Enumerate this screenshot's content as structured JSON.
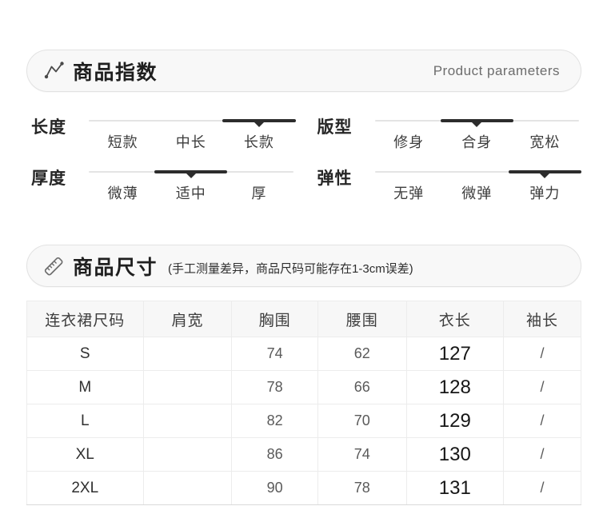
{
  "params_header": {
    "icon": "trend-icon",
    "title": "商品指数",
    "right_label": "Product parameters"
  },
  "attributes": [
    {
      "label": "长度",
      "options": [
        "短款",
        "中长",
        "长款"
      ],
      "selected_index": 2
    },
    {
      "label": "版型",
      "options": [
        "修身",
        "合身",
        "宽松"
      ],
      "selected_index": 1
    },
    {
      "label": "厚度",
      "options": [
        "微薄",
        "适中",
        "厚"
      ],
      "selected_index": 1
    },
    {
      "label": "弹性",
      "options": [
        "无弹",
        "微弹",
        "弹力"
      ],
      "selected_index": 2
    }
  ],
  "size_header": {
    "icon": "ruler-icon",
    "title": "商品尺寸",
    "note": "(手工测量差异，商品尺码可能存在1-3cm误差)"
  },
  "size_table": {
    "columns": [
      "连衣裙尺码",
      "肩宽",
      "胸围",
      "腰围",
      "衣长",
      "袖长"
    ],
    "rows": [
      [
        "S",
        "",
        "74",
        "62",
        "127",
        "/"
      ],
      [
        "M",
        "",
        "78",
        "66",
        "128",
        "/"
      ],
      [
        "L",
        "",
        "82",
        "70",
        "129",
        "/"
      ],
      [
        "XL",
        "",
        "86",
        "74",
        "130",
        "/"
      ],
      [
        "2XL",
        "",
        "90",
        "78",
        "131",
        "/"
      ]
    ]
  },
  "colors": {
    "selected_bar": "#2c2c2c",
    "track": "#e4e4e4",
    "pill_background": "#f8f8f8",
    "table_header_background": "#f7f7f7"
  }
}
